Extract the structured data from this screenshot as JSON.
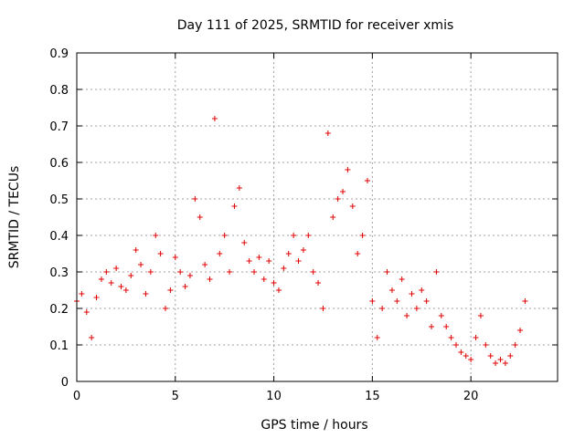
{
  "chart_data": {
    "type": "scatter",
    "title": "Day 111 of 2025, SRMTID for receiver xmis",
    "xlabel": "GPS time / hours",
    "ylabel": "SRMTID / TECUs",
    "xlim": [
      0,
      24.4
    ],
    "ylim": [
      0,
      0.9
    ],
    "xticks": [
      0,
      5,
      10,
      15,
      20
    ],
    "xtick_labels": [
      "0",
      "5",
      "10",
      "15",
      "20"
    ],
    "yticks": [
      0,
      0.1,
      0.2,
      0.3,
      0.4,
      0.5,
      0.6,
      0.7,
      0.8,
      0.9
    ],
    "ytick_labels": [
      "0",
      "0.1",
      "0.2",
      "0.3",
      "0.4",
      "0.5",
      "0.6",
      "0.7",
      "0.8",
      "0.9"
    ],
    "grid": true,
    "marker": "plus",
    "color": "#e00000",
    "series": [
      {
        "name": "SRMTID",
        "x": [
          0.0,
          0.25,
          0.5,
          0.75,
          1.0,
          1.25,
          1.5,
          1.75,
          2.0,
          2.25,
          2.5,
          2.75,
          3.0,
          3.25,
          3.5,
          3.75,
          4.0,
          4.25,
          4.5,
          4.75,
          5.0,
          5.25,
          5.5,
          5.75,
          6.0,
          6.25,
          6.5,
          6.75,
          7.0,
          7.25,
          7.5,
          7.75,
          8.0,
          8.25,
          8.5,
          8.75,
          9.0,
          9.25,
          9.5,
          9.75,
          10.0,
          10.25,
          10.5,
          10.75,
          11.0,
          11.25,
          11.5,
          11.75,
          12.0,
          12.25,
          12.5,
          12.75,
          13.0,
          13.25,
          13.5,
          13.75,
          14.0,
          14.25,
          14.5,
          14.75,
          15.0,
          15.25,
          15.5,
          15.75,
          16.0,
          16.25,
          16.5,
          16.75,
          17.0,
          17.25,
          17.5,
          17.75,
          18.0,
          18.25,
          18.5,
          18.75,
          19.0,
          19.25,
          19.5,
          19.75,
          20.0,
          20.25,
          20.5,
          20.75,
          21.0,
          21.25,
          21.5,
          21.75,
          22.0,
          22.25,
          22.5,
          22.75
        ],
        "y": [
          0.22,
          0.24,
          0.19,
          0.12,
          0.23,
          0.28,
          0.3,
          0.27,
          0.31,
          0.26,
          0.25,
          0.29,
          0.36,
          0.32,
          0.24,
          0.3,
          0.4,
          0.35,
          0.2,
          0.25,
          0.34,
          0.3,
          0.26,
          0.29,
          0.5,
          0.45,
          0.32,
          0.28,
          0.72,
          0.35,
          0.4,
          0.3,
          0.48,
          0.53,
          0.38,
          0.33,
          0.3,
          0.34,
          0.28,
          0.33,
          0.27,
          0.25,
          0.31,
          0.35,
          0.4,
          0.33,
          0.36,
          0.4,
          0.3,
          0.27,
          0.2,
          0.68,
          0.45,
          0.5,
          0.52,
          0.58,
          0.48,
          0.35,
          0.4,
          0.55,
          0.22,
          0.12,
          0.2,
          0.3,
          0.25,
          0.22,
          0.28,
          0.18,
          0.24,
          0.2,
          0.25,
          0.22,
          0.15,
          0.3,
          0.18,
          0.15,
          0.12,
          0.1,
          0.08,
          0.07,
          0.06,
          0.12,
          0.18,
          0.1,
          0.07,
          0.05,
          0.06,
          0.05,
          0.07,
          0.1,
          0.14,
          0.22
        ]
      }
    ]
  }
}
